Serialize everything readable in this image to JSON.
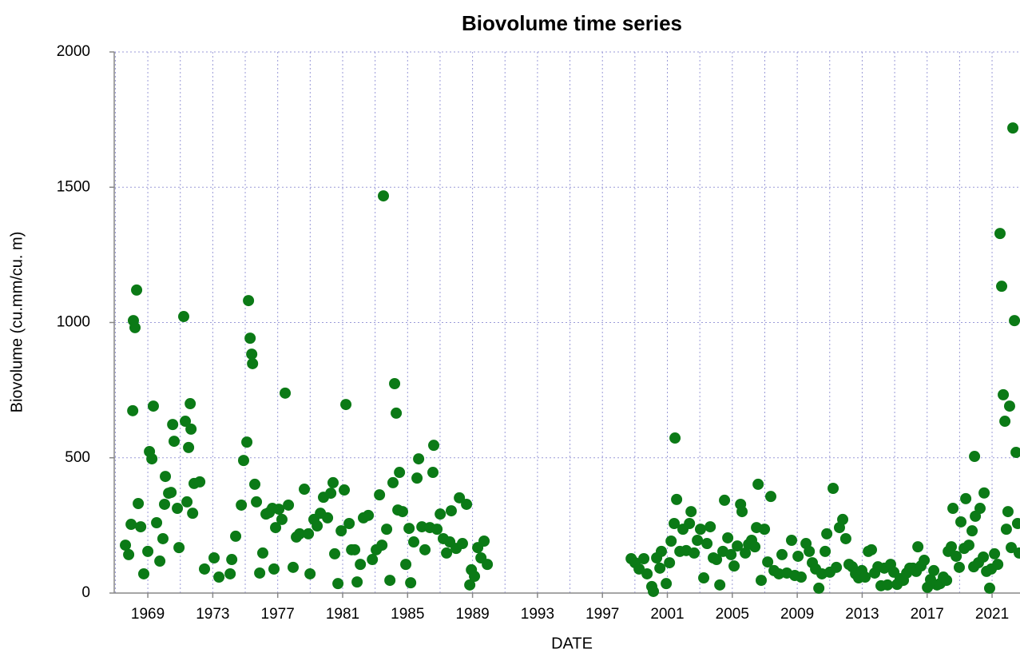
{
  "chart_data": {
    "type": "scatter",
    "title": "Biovolume time series",
    "x_label": "DATE",
    "y_label": "Biovolume (cu.mm/cu. m)",
    "color": "#0b7a16",
    "grid": true,
    "xlim": [
      1966.93,
      2022.72
    ],
    "ylim": [
      0,
      2000
    ],
    "xticks": [
      1969,
      1973,
      1977,
      1981,
      1985,
      1989,
      1993,
      1997,
      2001,
      2005,
      2009,
      2013,
      2017,
      2021
    ],
    "x_minor_ticks": [
      1967,
      1971,
      1975,
      1979,
      1983,
      1987,
      1991,
      1995,
      1999,
      2003,
      2007,
      2011,
      2015,
      2019
    ],
    "yticks": [
      0,
      500,
      1000,
      1500,
      2000
    ],
    "x": [
      1967.62,
      1967.82,
      1967.97,
      1968.07,
      1968.11,
      1968.21,
      1968.31,
      1968.41,
      1968.56,
      1968.75,
      1969.0,
      1969.1,
      1969.25,
      1969.34,
      1969.54,
      1969.74,
      1969.93,
      1970.03,
      1970.08,
      1970.28,
      1970.43,
      1970.53,
      1970.62,
      1970.82,
      1970.92,
      1971.21,
      1971.31,
      1971.41,
      1971.51,
      1971.61,
      1971.66,
      1971.76,
      1971.85,
      1972.2,
      1972.49,
      1973.08,
      1973.38,
      1974.07,
      1974.17,
      1974.41,
      1974.76,
      1974.9,
      1975.1,
      1975.2,
      1975.3,
      1975.4,
      1975.45,
      1975.59,
      1975.69,
      1975.89,
      1976.08,
      1976.28,
      1976.48,
      1976.67,
      1976.77,
      1976.87,
      1977.07,
      1977.26,
      1977.46,
      1977.66,
      1977.95,
      1978.15,
      1978.35,
      1978.64,
      1978.89,
      1978.99,
      1979.23,
      1979.43,
      1979.63,
      1979.82,
      1980.07,
      1980.27,
      1980.41,
      1980.51,
      1980.71,
      1980.91,
      1981.1,
      1981.2,
      1981.4,
      1981.55,
      1981.74,
      1981.89,
      1982.09,
      1982.28,
      1982.58,
      1982.83,
      1983.07,
      1983.27,
      1983.42,
      1983.51,
      1983.71,
      1983.91,
      1984.1,
      1984.2,
      1984.3,
      1984.4,
      1984.5,
      1984.69,
      1984.89,
      1985.09,
      1985.19,
      1985.38,
      1985.58,
      1985.68,
      1985.88,
      1986.07,
      1986.37,
      1986.56,
      1986.61,
      1986.81,
      1987.01,
      1987.2,
      1987.4,
      1987.6,
      1987.69,
      1987.99,
      1988.19,
      1988.38,
      1988.63,
      1988.83,
      1988.93,
      1989.12,
      1989.32,
      1989.52,
      1989.71,
      1989.91,
      1998.77,
      1999.01,
      1999.26,
      1999.55,
      1999.75,
      2000.04,
      2000.14,
      2000.34,
      2000.54,
      2000.63,
      2000.93,
      2001.13,
      2001.23,
      2001.42,
      2001.47,
      2001.57,
      2001.77,
      2001.96,
      2002.16,
      2002.36,
      2002.46,
      2002.65,
      2002.85,
      2003.04,
      2003.24,
      2003.44,
      2003.64,
      2003.83,
      2004.03,
      2004.23,
      2004.42,
      2004.52,
      2004.72,
      2004.92,
      2005.11,
      2005.31,
      2005.51,
      2005.6,
      2005.8,
      2006.0,
      2006.19,
      2006.39,
      2006.49,
      2006.59,
      2006.78,
      2006.98,
      2007.18,
      2007.37,
      2007.57,
      2007.87,
      2008.06,
      2008.36,
      2008.65,
      2008.85,
      2009.05,
      2009.24,
      2009.54,
      2009.74,
      2009.93,
      2010.13,
      2010.33,
      2010.52,
      2010.72,
      2010.82,
      2011.01,
      2011.21,
      2011.41,
      2011.6,
      2011.8,
      2011.99,
      2012.19,
      2012.39,
      2012.59,
      2012.78,
      2012.98,
      2013.18,
      2013.38,
      2013.57,
      2013.77,
      2013.97,
      2014.16,
      2014.36,
      2014.56,
      2014.75,
      2014.95,
      2015.15,
      2015.34,
      2015.54,
      2015.74,
      2015.93,
      2016.13,
      2016.33,
      2016.43,
      2016.62,
      2016.82,
      2017.02,
      2017.21,
      2017.41,
      2017.61,
      2017.8,
      2018.0,
      2018.2,
      2018.3,
      2018.49,
      2018.59,
      2018.79,
      2018.98,
      2019.08,
      2019.28,
      2019.38,
      2019.57,
      2019.77,
      2019.87,
      2019.92,
      2019.97,
      2020.16,
      2020.26,
      2020.46,
      2020.51,
      2020.66,
      2020.85,
      2020.95,
      2021.15,
      2021.35,
      2021.49,
      2021.59,
      2021.69,
      2021.79,
      2021.88,
      2021.98,
      2022.08,
      2022.18,
      2022.28,
      2022.38,
      2022.48,
      2022.57,
      2022.67
    ],
    "values": [
      177,
      142,
      254,
      674,
      1007,
      981,
      1120,
      331,
      245,
      71,
      154,
      523,
      496,
      691,
      260,
      118,
      201,
      328,
      431,
      369,
      372,
      623,
      561,
      313,
      168,
      1022,
      635,
      337,
      538,
      700,
      606,
      295,
      405,
      411,
      89,
      130,
      59,
      71,
      124,
      210,
      325,
      490,
      558,
      1081,
      942,
      883,
      848,
      402,
      337,
      74,
      148,
      292,
      298,
      313,
      89,
      242,
      310,
      272,
      739,
      325,
      95,
      207,
      219,
      384,
      219,
      71,
      272,
      248,
      295,
      354,
      278,
      369,
      408,
      145,
      35,
      230,
      381,
      697,
      257,
      160,
      160,
      41,
      106,
      278,
      287,
      124,
      160,
      363,
      177,
      1468,
      236,
      47,
      408,
      774,
      665,
      307,
      446,
      301,
      106,
      239,
      38,
      189,
      425,
      496,
      245,
      160,
      242,
      446,
      546,
      236,
      292,
      201,
      148,
      189,
      304,
      165,
      352,
      183,
      328,
      30,
      86,
      62,
      168,
      130,
      192,
      106,
      127,
      112,
      89,
      127,
      71,
      24,
      6,
      130,
      92,
      154,
      35,
      112,
      192,
      257,
      573,
      346,
      154,
      236,
      157,
      257,
      301,
      148,
      195,
      236,
      56,
      183,
      245,
      130,
      124,
      30,
      154,
      343,
      204,
      142,
      100,
      174,
      328,
      301,
      148,
      180,
      195,
      171,
      242,
      402,
      47,
      236,
      115,
      357,
      83,
      71,
      142,
      74,
      195,
      65,
      136,
      59,
      183,
      154,
      112,
      89,
      18,
      71,
      154,
      219,
      77,
      387,
      95,
      242,
      272,
      201,
      106,
      97,
      71,
      56,
      83,
      59,
      154,
      160,
      74,
      97,
      27,
      92,
      30,
      106,
      77,
      32,
      53,
      47,
      74,
      92,
      92,
      80,
      171,
      100,
      121,
      21,
      50,
      83,
      30,
      35,
      59,
      47,
      154,
      171,
      313,
      136,
      95,
      263,
      165,
      349,
      177,
      230,
      97,
      505,
      284,
      112,
      313,
      133,
      370,
      80,
      18,
      89,
      145,
      106,
      1329,
      1134,
      733,
      635,
      236,
      301,
      691,
      168,
      1719,
      1007,
      520,
      257,
      148
    ]
  }
}
